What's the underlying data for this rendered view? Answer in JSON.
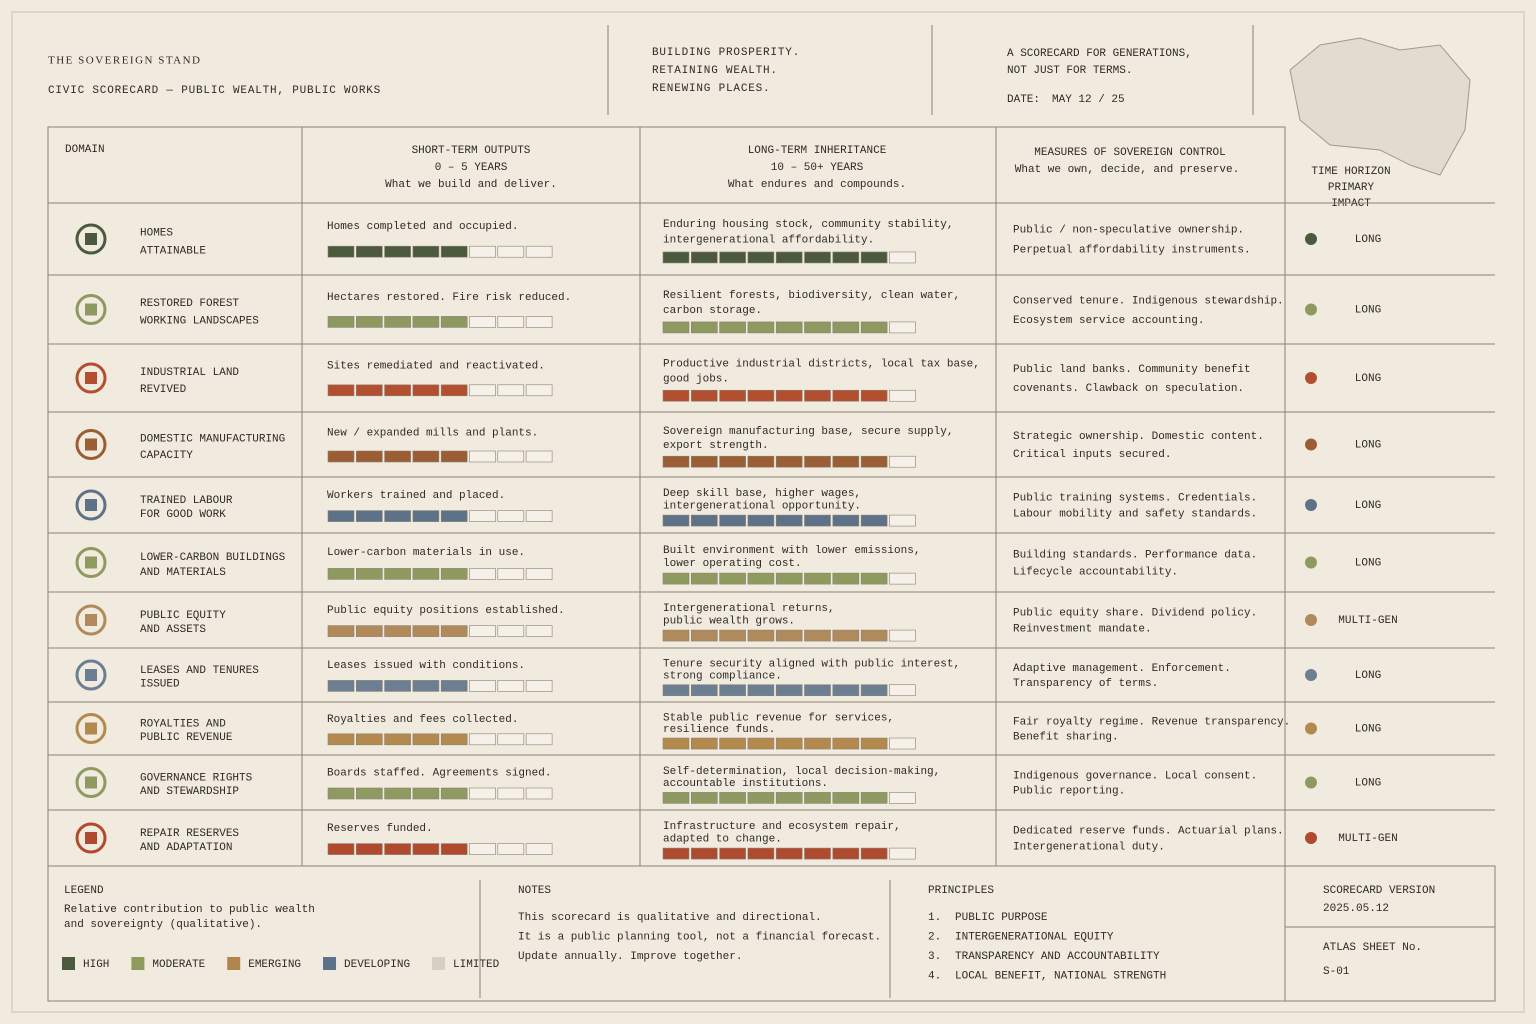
{
  "header": {
    "title": "THE SOVEREIGN STAND",
    "subtitle": "CIVIC SCORECARD — PUBLIC WEALTH, PUBLIC WORKS",
    "tagline": [
      "BUILDING PROSPERITY.",
      "RETAINING WEALTH.",
      "RENEWING PLACES."
    ],
    "note": [
      "A SCORECARD FOR GENERATIONS,",
      "NOT JUST FOR TERMS."
    ],
    "date_label": "DATE:",
    "date": "MAY 12 / 25"
  },
  "table": {
    "columns": {
      "domain": "DOMAIN",
      "short": {
        "title": "SHORT-TERM OUTPUTS",
        "range": "0 – 5 YEARS",
        "desc": "What we build and deliver."
      },
      "long": {
        "title": "LONG-TERM INHERITANCE",
        "range": "10 – 50+ YEARS",
        "desc": "What endures and compounds."
      },
      "control": {
        "title": "MEASURES OF SOVEREIGN CONTROL",
        "desc": "What we own, decide, and preserve."
      },
      "horizon": [
        "TIME HORIZON",
        "PRIMARY",
        "IMPACT"
      ]
    },
    "short_segments": 8,
    "long_segments": 9,
    "rows": [
      {
        "domain": [
          "HOMES",
          "ATTAINABLE"
        ],
        "short_text": "Homes completed and occupied.",
        "short_score": 5,
        "long_text": [
          "Enduring housing stock, community stability,",
          "intergenerational affordability."
        ],
        "long_score": 8,
        "control": [
          "Public / non-speculative ownership.",
          "Perpetual affordability instruments."
        ],
        "horizon": "LONG",
        "color": "#4b5a3d"
      },
      {
        "domain": [
          "RESTORED FOREST",
          "WORKING LANDSCAPES"
        ],
        "short_text": "Hectares restored. Fire risk reduced.",
        "short_score": 5,
        "long_text": [
          "Resilient forests, biodiversity, clean water,",
          "carbon storage."
        ],
        "long_score": 8,
        "control": [
          "Conserved tenure.  Indigenous stewardship.",
          "Ecosystem service accounting."
        ],
        "horizon": "LONG",
        "color": "#8d9960"
      },
      {
        "domain": [
          "INDUSTRIAL LAND",
          "REVIVED"
        ],
        "short_text": "Sites remediated and reactivated.",
        "short_score": 5,
        "long_text": [
          "Productive industrial districts, local tax base,",
          "good jobs."
        ],
        "long_score": 8,
        "control": [
          "Public land banks. Community benefit",
          "covenants. Clawback on speculation."
        ],
        "horizon": "LONG",
        "color": "#b14f30"
      },
      {
        "domain": [
          "DOMESTIC MANUFACTURING",
          "CAPACITY"
        ],
        "short_text": "New / expanded mills and plants.",
        "short_score": 5,
        "long_text": [
          "Sovereign manufacturing base, secure supply,",
          "export strength."
        ],
        "long_score": 8,
        "control": [
          "Strategic ownership.  Domestic content.",
          "Critical inputs secured."
        ],
        "horizon": "LONG",
        "color": "#9b5e34"
      },
      {
        "domain": [
          "TRAINED LABOUR",
          "FOR GOOD WORK"
        ],
        "short_text": "Workers trained and placed.",
        "short_score": 5,
        "long_text": [
          "Deep skill base, higher wages,",
          "intergenerational opportunity."
        ],
        "long_score": 8,
        "control": [
          "Public training systems.  Credentials.",
          "Labour mobility and safety standards."
        ],
        "horizon": "LONG",
        "color": "#5d7288"
      },
      {
        "domain": [
          "LOWER-CARBON BUILDINGS",
          "AND MATERIALS"
        ],
        "short_text": "Lower-carbon materials in use.",
        "short_score": 5,
        "long_text": [
          "Built environment with lower emissions,",
          "lower operating cost."
        ],
        "long_score": 8,
        "control": [
          "Building standards.   Performance data.",
          "Lifecycle accountability."
        ],
        "horizon": "LONG",
        "color": "#8f9a5f"
      },
      {
        "domain": [
          "PUBLIC EQUITY",
          "AND ASSETS"
        ],
        "short_text": "Public equity positions established.",
        "short_score": 5,
        "long_text": [
          "Intergenerational returns,",
          "public wealth grows."
        ],
        "long_score": 8,
        "control": [
          "Public equity share.  Dividend policy.",
          "Reinvestment mandate."
        ],
        "horizon": "MULTI-GEN",
        "color": "#b08a5b"
      },
      {
        "domain": [
          "LEASES AND TENURES",
          "ISSUED"
        ],
        "short_text": "Leases issued with conditions.",
        "short_score": 5,
        "long_text": [
          "Tenure security aligned with public interest,",
          "strong compliance."
        ],
        "long_score": 8,
        "control": [
          "Adaptive management.  Enforcement.",
          "Transparency of terms."
        ],
        "horizon": "LONG",
        "color": "#6b7e92"
      },
      {
        "domain": [
          "ROYALTIES AND",
          "PUBLIC REVENUE"
        ],
        "short_text": "Royalties and fees collected.",
        "short_score": 5,
        "long_text": [
          "Stable public revenue for services,",
          "resilience funds."
        ],
        "long_score": 8,
        "control": [
          "Fair royalty regime.  Revenue transparency.",
          "Benefit sharing."
        ],
        "horizon": "LONG",
        "color": "#b4894d"
      },
      {
        "domain": [
          "GOVERNANCE RIGHTS",
          "AND STEWARDSHIP"
        ],
        "short_text": "Boards staffed. Agreements signed.",
        "short_score": 5,
        "long_text": [
          "Self-determination, local decision-making,",
          "accountable institutions."
        ],
        "long_score": 8,
        "control": [
          "Indigenous governance.  Local consent.",
          "Public reporting."
        ],
        "horizon": "LONG",
        "color": "#8e9a62"
      },
      {
        "domain": [
          "REPAIR RESERVES",
          "AND ADAPTATION"
        ],
        "short_text": "Reserves funded.",
        "short_score": 5,
        "long_text": [
          "Infrastructure and ecosystem repair,",
          "adapted to change."
        ],
        "long_score": 8,
        "control": [
          "Dedicated reserve funds.  Actuarial plans.",
          "Intergenerational duty."
        ],
        "horizon": "MULTI-GEN",
        "color": "#b04a2e"
      }
    ]
  },
  "footer": {
    "legend": {
      "title": "LEGEND",
      "desc": [
        "Relative contribution to public wealth",
        "and sovereignty (qualitative)."
      ],
      "items": [
        {
          "label": "HIGH",
          "color": "#4b5a3d"
        },
        {
          "label": "MODERATE",
          "color": "#8f9a5f"
        },
        {
          "label": "EMERGING",
          "color": "#b08550"
        },
        {
          "label": "DEVELOPING",
          "color": "#5d7288"
        },
        {
          "label": "LIMITED",
          "color": "#d6d0c4"
        }
      ]
    },
    "notes": {
      "title": "NOTES",
      "lines": [
        "This scorecard is qualitative and directional.",
        "It is a public planning tool, not a financial forecast.",
        "Update annually. Improve together."
      ]
    },
    "principles": {
      "title": "PRINCIPLES",
      "items": [
        {
          "num": "1.",
          "text": "PUBLIC PURPOSE"
        },
        {
          "num": "2.",
          "text": "INTERGENERATIONAL EQUITY"
        },
        {
          "num": "3.",
          "text": "TRANSPARENCY AND ACCOUNTABILITY"
        },
        {
          "num": "4.",
          "text": "LOCAL BENEFIT, NATIONAL STRENGTH"
        }
      ]
    },
    "version": {
      "label": "SCORECARD VERSION",
      "value": "2025.05.12"
    },
    "sheet": {
      "label": "ATLAS SHEET No.",
      "value": "S-01"
    }
  }
}
